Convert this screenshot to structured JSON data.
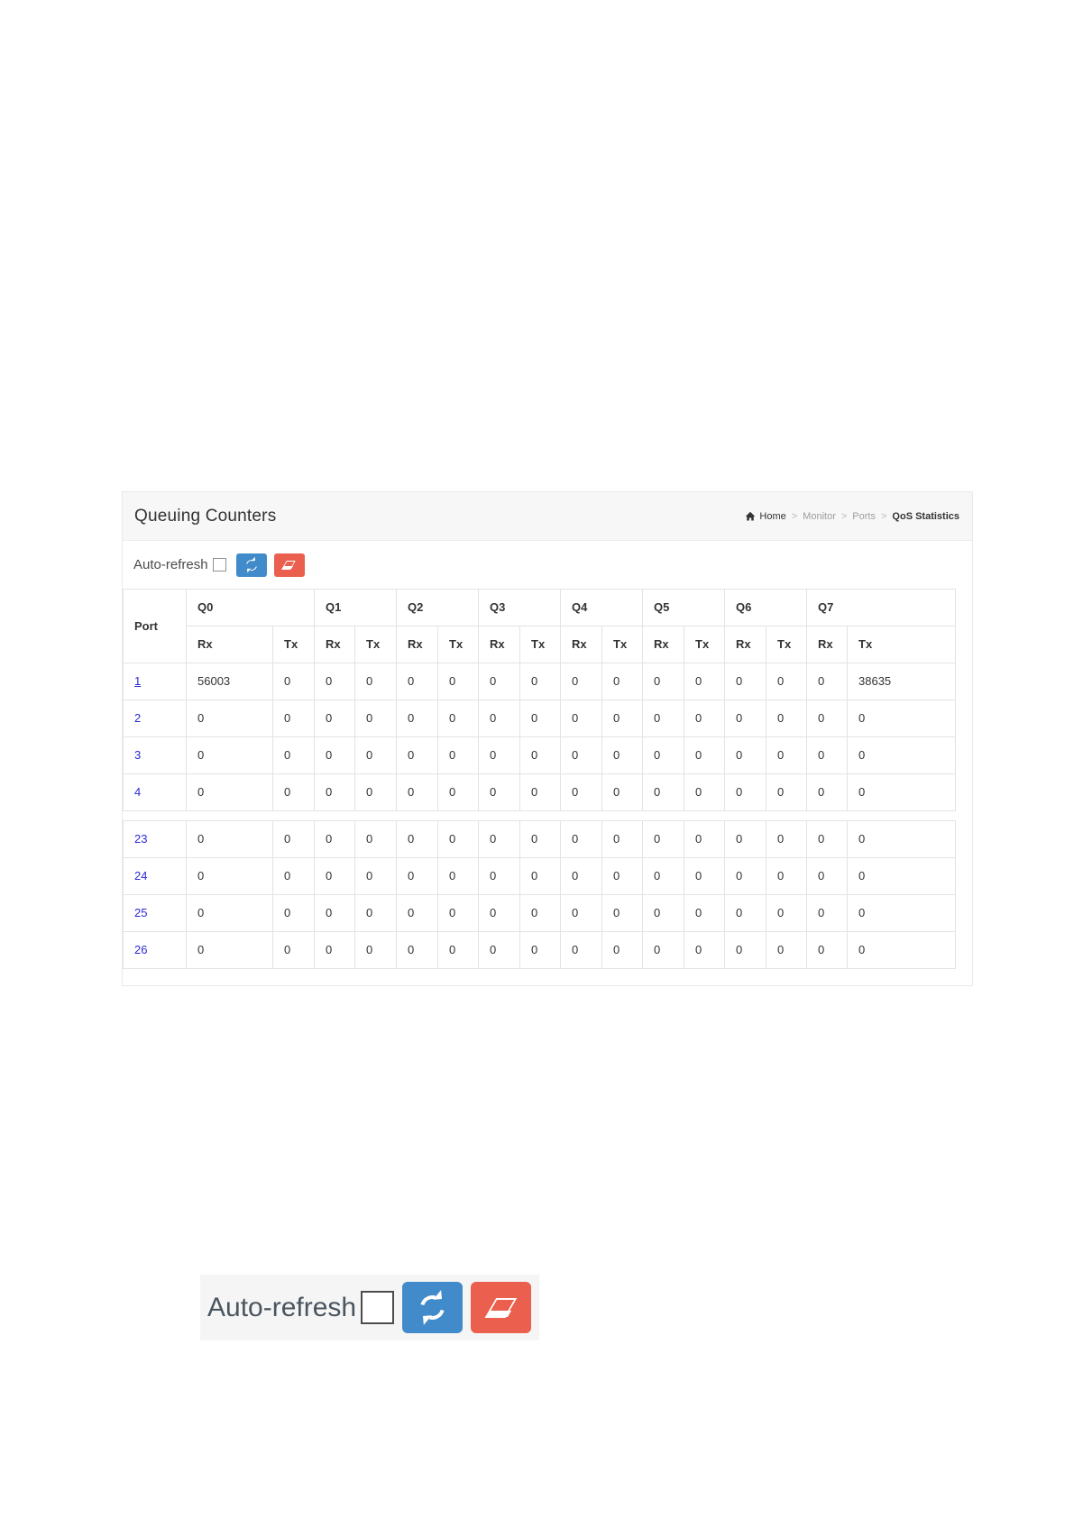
{
  "header": {
    "title": "Queuing Counters",
    "breadcrumb": {
      "home": "Home",
      "monitor": "Monitor",
      "ports": "Ports",
      "current": "QoS Statistics",
      "separator": ">"
    }
  },
  "toolbar": {
    "auto_refresh_label": "Auto-refresh"
  },
  "table": {
    "port_header": "Port",
    "queue_headers": [
      "Q0",
      "Q1",
      "Q2",
      "Q3",
      "Q4",
      "Q5",
      "Q6",
      "Q7"
    ],
    "sub_headers": [
      "Rx",
      "Tx"
    ],
    "upper_rows": [
      {
        "port": "1",
        "values": [
          "56003",
          "0",
          "0",
          "0",
          "0",
          "0",
          "0",
          "0",
          "0",
          "0",
          "0",
          "0",
          "0",
          "0",
          "0",
          "38635"
        ]
      },
      {
        "port": "2",
        "values": [
          "0",
          "0",
          "0",
          "0",
          "0",
          "0",
          "0",
          "0",
          "0",
          "0",
          "0",
          "0",
          "0",
          "0",
          "0",
          "0"
        ]
      },
      {
        "port": "3",
        "values": [
          "0",
          "0",
          "0",
          "0",
          "0",
          "0",
          "0",
          "0",
          "0",
          "0",
          "0",
          "0",
          "0",
          "0",
          "0",
          "0"
        ]
      },
      {
        "port": "4",
        "values": [
          "0",
          "0",
          "0",
          "0",
          "0",
          "0",
          "0",
          "0",
          "0",
          "0",
          "0",
          "0",
          "0",
          "0",
          "0",
          "0"
        ]
      }
    ],
    "lower_rows": [
      {
        "port": "23",
        "values": [
          "0",
          "0",
          "0",
          "0",
          "0",
          "0",
          "0",
          "0",
          "0",
          "0",
          "0",
          "0",
          "0",
          "0",
          "0",
          "0"
        ]
      },
      {
        "port": "24",
        "values": [
          "0",
          "0",
          "0",
          "0",
          "0",
          "0",
          "0",
          "0",
          "0",
          "0",
          "0",
          "0",
          "0",
          "0",
          "0",
          "0"
        ]
      },
      {
        "port": "25",
        "values": [
          "0",
          "0",
          "0",
          "0",
          "0",
          "0",
          "0",
          "0",
          "0",
          "0",
          "0",
          "0",
          "0",
          "0",
          "0",
          "0"
        ]
      },
      {
        "port": "26",
        "values": [
          "0",
          "0",
          "0",
          "0",
          "0",
          "0",
          "0",
          "0",
          "0",
          "0",
          "0",
          "0",
          "0",
          "0",
          "0",
          "0"
        ]
      }
    ]
  },
  "zoom_widget": {
    "auto_refresh_label": "Auto-refresh"
  },
  "icons": {
    "refresh": "refresh-icon",
    "clear": "eraser-icon",
    "home": "home-icon"
  },
  "colors": {
    "button_blue": "#428bca",
    "button_red": "#ea5f4d",
    "link_blue": "#2a2ad4",
    "header_band": "#f7f7f7",
    "table_border": "#e3e3e3",
    "zoom_widget_bg": "#f5f5f5"
  }
}
